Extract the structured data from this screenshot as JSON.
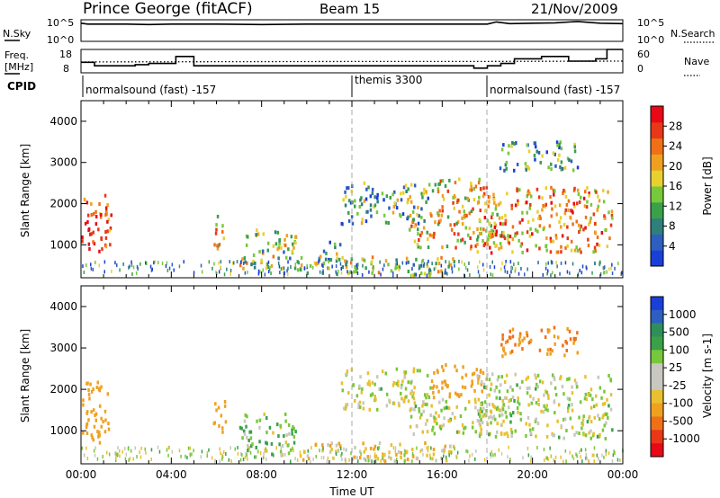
{
  "header": {
    "station": "Prince George (fitACF)",
    "beam": "Beam 15",
    "date": "21/Nov/2009"
  },
  "chart_data": [
    {
      "type": "line",
      "panel": "noise",
      "left_label": "N.Sky",
      "right_label": "N.Search",
      "left_ticks": [
        "10^5",
        "10^0"
      ],
      "right_ticks": [
        "10^5",
        "10^0"
      ],
      "series": [
        {
          "name": "N.Sky",
          "x_hours": [
            0,
            0.3,
            1,
            2,
            3,
            4,
            6,
            8,
            10,
            12,
            14,
            16,
            18,
            18.4,
            19,
            20,
            21,
            22,
            23,
            24
          ],
          "y_log": [
            4.2,
            4.0,
            4.0,
            4.0,
            3.9,
            4.0,
            4.0,
            3.9,
            4.0,
            4.0,
            4.0,
            4.0,
            4.0,
            4.5,
            4.1,
            4.2,
            4.3,
            4.6,
            4.2,
            4.1
          ]
        },
        {
          "name": "N.Search",
          "style": "dotted"
        }
      ]
    },
    {
      "type": "line",
      "panel": "frequency",
      "left_label_1": "Freq.",
      "left_label_2": "[MHz]",
      "right_label": "Nave",
      "left_ticks": [
        "18",
        "8"
      ],
      "right_ticks": [
        "60",
        "0"
      ],
      "series": [
        {
          "name": "Freq",
          "x_hours": [
            0,
            0.6,
            0.6,
            2.4,
            2.4,
            3,
            3,
            4.2,
            4.2,
            5,
            5,
            17.4,
            17.4,
            18,
            18,
            18.6,
            18.6,
            19.2,
            19.2,
            20.4,
            20.4,
            21.6,
            21.6,
            22.8,
            22.8,
            23.3,
            23.3,
            24
          ],
          "y": [
            12.5,
            12.5,
            11,
            11,
            11.5,
            11.5,
            12,
            12,
            15,
            15,
            11,
            11,
            10,
            10,
            11,
            11,
            12,
            12,
            14,
            14,
            15,
            15,
            13,
            13,
            14,
            14,
            18,
            18
          ]
        },
        {
          "name": "Nave",
          "style": "dotted",
          "x_hours": [
            0,
            12,
            17,
            24
          ],
          "y": [
            28,
            29,
            29,
            30
          ]
        }
      ]
    },
    {
      "type": "table",
      "panel": "cpid",
      "label": "CPID",
      "segments": [
        {
          "start_hour": 0,
          "end_hour": 12,
          "text": "normalsound (fast) -157"
        },
        {
          "start_hour": 12,
          "end_hour": 18,
          "text": "themis 3300"
        },
        {
          "start_hour": 18,
          "end_hour": 24,
          "text": "normalsound (fast) -157"
        }
      ]
    },
    {
      "type": "heatmap",
      "panel": "power",
      "ylabel": "Slant Range [km]",
      "ylim": [
        200,
        4500
      ],
      "yticks": [
        1000,
        2000,
        3000,
        4000
      ],
      "xlim": [
        0,
        24
      ],
      "colorbar_label": "Power [dB]",
      "colorbar_ticks": [
        4,
        8,
        12,
        16,
        20,
        24,
        28
      ],
      "colorbar_colors": [
        "#1a3fd8",
        "#2d5fc0",
        "#2f7f7a",
        "#3aa04a",
        "#77c83a",
        "#e8d030",
        "#f0a020",
        "#f07018",
        "#e83818",
        "#e80818"
      ],
      "regions": [
        {
          "x0": 0,
          "x1": 1.3,
          "y0": 700,
          "y1": 2200,
          "level": 0.85
        },
        {
          "x0": 5.8,
          "x1": 6.4,
          "y0": 900,
          "y1": 1700,
          "level": 0.55
        },
        {
          "x0": 7.0,
          "x1": 9.5,
          "y0": 400,
          "y1": 1400,
          "level": 0.45
        },
        {
          "x0": 10.5,
          "x1": 11.5,
          "y0": 600,
          "y1": 1100,
          "level": 0.35
        },
        {
          "x0": 9.5,
          "x1": 16.5,
          "y0": 250,
          "y1": 700,
          "level": 0.45
        },
        {
          "x0": 11.5,
          "x1": 15.5,
          "y0": 1500,
          "y1": 2500,
          "level": 0.35
        },
        {
          "x0": 14.5,
          "x1": 19.0,
          "y0": 900,
          "y1": 1800,
          "level": 0.6
        },
        {
          "x0": 15.5,
          "x1": 18.0,
          "y0": 1800,
          "y1": 2600,
          "level": 0.6
        },
        {
          "x0": 17.5,
          "x1": 23.5,
          "y0": 800,
          "y1": 2400,
          "level": 0.7
        },
        {
          "x0": 18.5,
          "x1": 22.0,
          "y0": 2800,
          "y1": 3500,
          "level": 0.3
        }
      ]
    },
    {
      "type": "heatmap",
      "panel": "velocity",
      "ylabel": "Slant Range [km]",
      "ylim": [
        200,
        4500
      ],
      "yticks": [
        1000,
        2000,
        3000,
        4000
      ],
      "xlim": [
        0,
        24
      ],
      "xticks": [
        "00:00",
        "04:00",
        "08:00",
        "12:00",
        "16:00",
        "20:00",
        "00:00"
      ],
      "xlabel": "Time UT",
      "colorbar_label": "Velocity [m s-1]",
      "colorbar_ticks": [
        "1000",
        "500",
        "100",
        "25",
        "-25",
        "-100",
        "-500",
        "-1000"
      ],
      "colorbar_colors": [
        "#1a3fd8",
        "#2d5fc0",
        "#2f8f5a",
        "#3aa04a",
        "#77c83a",
        "#c8c8c0",
        "#c8c8c0",
        "#e8c030",
        "#f0a020",
        "#f07018",
        "#e83818",
        "#e80818"
      ],
      "regions": [
        {
          "x0": 0,
          "x1": 1.3,
          "y0": 700,
          "y1": 2200,
          "v": -300
        },
        {
          "x0": 5.8,
          "x1": 6.4,
          "y0": 900,
          "y1": 1700,
          "v": -300
        },
        {
          "x0": 7.0,
          "x1": 9.5,
          "y0": 400,
          "y1": 1400,
          "v": 60
        },
        {
          "x0": 9.5,
          "x1": 16.5,
          "y0": 250,
          "y1": 700,
          "v": -80
        },
        {
          "x0": 11.5,
          "x1": 15.5,
          "y0": 1500,
          "y1": 2500,
          "v": 0
        },
        {
          "x0": 14.5,
          "x1": 19.0,
          "y0": 900,
          "y1": 1800,
          "v": 0
        },
        {
          "x0": 15.5,
          "x1": 18.0,
          "y0": 1800,
          "y1": 2600,
          "v": -300
        },
        {
          "x0": 17.5,
          "x1": 23.5,
          "y0": 800,
          "y1": 2400,
          "v": 0
        },
        {
          "x0": 18.5,
          "x1": 22.0,
          "y0": 2800,
          "y1": 3500,
          "v": -400
        }
      ]
    }
  ]
}
